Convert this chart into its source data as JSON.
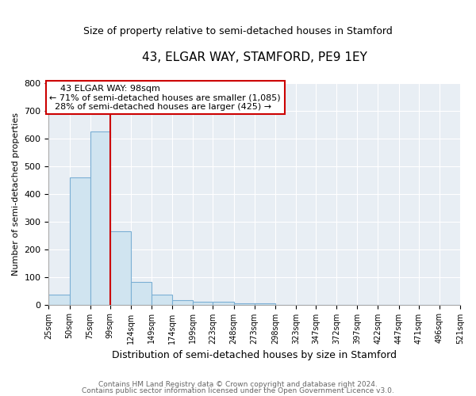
{
  "title": "43, ELGAR WAY, STAMFORD, PE9 1EY",
  "subtitle": "Size of property relative to semi-detached houses in Stamford",
  "xlabel": "Distribution of semi-detached houses by size in Stamford",
  "ylabel": "Number of semi-detached properties",
  "footnote1": "Contains HM Land Registry data © Crown copyright and database right 2024.",
  "footnote2": "Contains public sector information licensed under the Open Government Licence v3.0.",
  "bin_edges": [
    25,
    50,
    75,
    99,
    124,
    149,
    174,
    199,
    223,
    248,
    273,
    298,
    323,
    347,
    372,
    397,
    422,
    447,
    471,
    496,
    521
  ],
  "bar_heights": [
    35,
    460,
    625,
    265,
    82,
    35,
    15,
    10,
    10,
    5,
    5,
    0,
    0,
    0,
    0,
    0,
    0,
    0,
    0,
    0
  ],
  "bar_color": "#d0e4f0",
  "bar_edge_color": "#7bafd4",
  "red_line_x": 99,
  "ylim": [
    0,
    800
  ],
  "annotation_title": "43 ELGAR WAY: 98sqm",
  "annotation_line1": "← 71% of semi-detached houses are smaller (1,085)",
  "annotation_line2": "28% of semi-detached houses are larger (425) →",
  "annotation_box_color": "#ffffff",
  "annotation_border_color": "#cc0000",
  "x_tick_labels": [
    "25sqm",
    "50sqm",
    "75sqm",
    "99sqm",
    "124sqm",
    "149sqm",
    "174sqm",
    "199sqm",
    "223sqm",
    "248sqm",
    "273sqm",
    "298sqm",
    "323sqm",
    "347sqm",
    "372sqm",
    "397sqm",
    "422sqm",
    "447sqm",
    "471sqm",
    "496sqm",
    "521sqm"
  ],
  "yticks": [
    0,
    100,
    200,
    300,
    400,
    500,
    600,
    700,
    800
  ],
  "background_color": "#ffffff",
  "plot_bg_color": "#e8eef4",
  "grid_color": "#ffffff"
}
